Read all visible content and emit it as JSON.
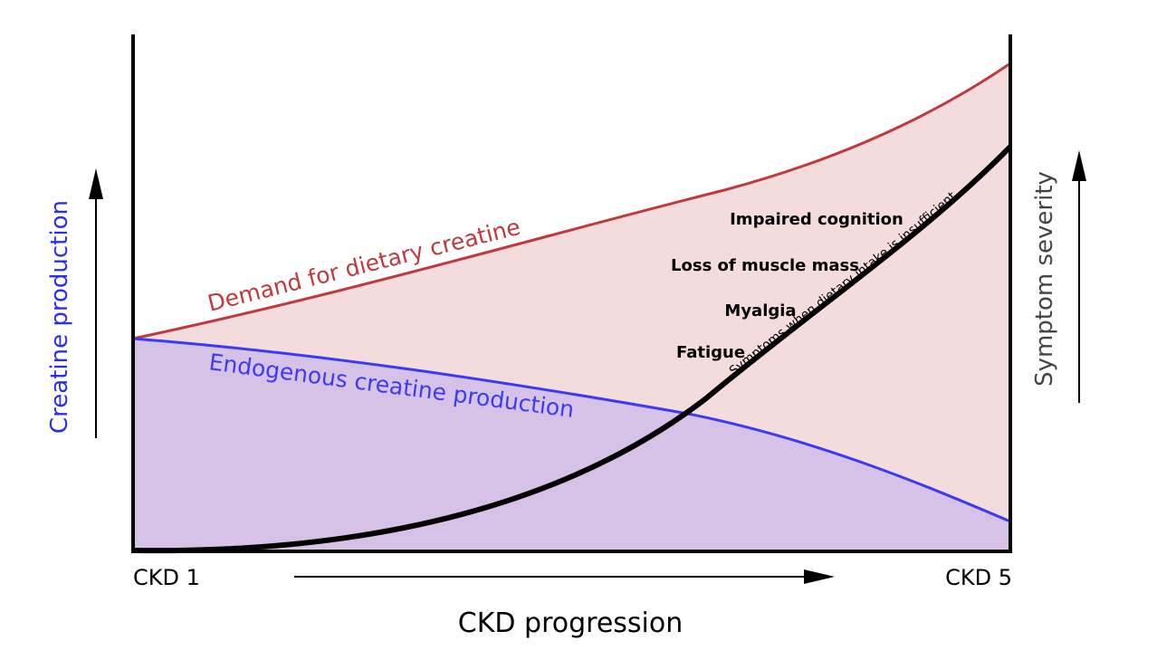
{
  "chart_data": {
    "type": "line",
    "title": "",
    "xlabel": "CKD progression",
    "ylabel_left": "Creatine production",
    "ylabel_right": "Symptom severity",
    "x_start_label": "CKD 1",
    "x_end_label": "CKD 5",
    "series": [
      {
        "name": "Demand for dietary creatine",
        "color": "#c0393e",
        "shape": "increasing, convex"
      },
      {
        "name": "Endogenous creatine production",
        "color": "#3b3bf2",
        "shape": "decreasing"
      },
      {
        "name": "Symptoms when dietary intake is insufficient",
        "color": "#000000",
        "shape": "accelerating increase"
      }
    ],
    "symptoms": [
      "Impaired cognition",
      "Loss of muscle mass",
      "Myalgia",
      "Fatigue"
    ]
  },
  "colors": {
    "demand_fill": "#f5dcdc",
    "endogenous_fill": "#d6c2e6",
    "left_label": "#2d2df0",
    "right_label": "#444444"
  }
}
